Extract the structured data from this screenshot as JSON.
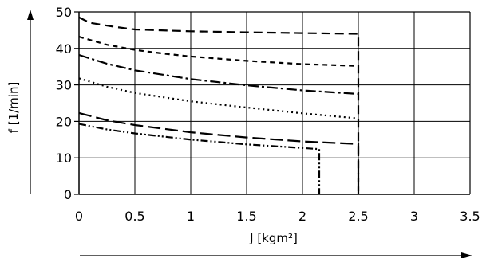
{
  "chart_data": {
    "type": "line",
    "xlabel": "J [kgm²]",
    "ylabel": "f [1/min]",
    "xlim": [
      0,
      3.5
    ],
    "ylim": [
      0,
      50
    ],
    "x_ticks": [
      0,
      0.5,
      1,
      1.5,
      2,
      2.5,
      3,
      3.5
    ],
    "x_tick_labels": [
      "0",
      "0.5",
      "1",
      "1.5",
      "2",
      "2.5",
      "3",
      "3.5"
    ],
    "y_ticks": [
      0,
      10,
      20,
      30,
      40,
      50
    ],
    "y_tick_labels": [
      "0",
      "10",
      "20",
      "30",
      "40",
      "50"
    ],
    "grid": true,
    "series": [
      {
        "dash": "long-dash",
        "points": [
          [
            0,
            48.5
          ],
          [
            0.1,
            47
          ],
          [
            0.3,
            46
          ],
          [
            0.5,
            45.2
          ],
          [
            1,
            44.7
          ],
          [
            1.5,
            44.4
          ],
          [
            2,
            44.2
          ],
          [
            2.5,
            44
          ],
          [
            2.5,
            0
          ]
        ]
      },
      {
        "dash": "short-dash",
        "points": [
          [
            0,
            43.2
          ],
          [
            0.25,
            41
          ],
          [
            0.5,
            39.6
          ],
          [
            0.75,
            38.6
          ],
          [
            1,
            37.8
          ],
          [
            1.5,
            36.6
          ],
          [
            2,
            35.7
          ],
          [
            2.5,
            35.2
          ]
        ]
      },
      {
        "dash": "dash-dot",
        "points": [
          [
            0,
            38.2
          ],
          [
            0.25,
            35.8
          ],
          [
            0.5,
            34
          ],
          [
            1,
            31.6
          ],
          [
            1.5,
            29.9
          ],
          [
            2,
            28.5
          ],
          [
            2.5,
            27.5
          ]
        ]
      },
      {
        "dash": "dotted",
        "points": [
          [
            0,
            31.8
          ],
          [
            0.25,
            29.5
          ],
          [
            0.5,
            27.8
          ],
          [
            1,
            25.5
          ],
          [
            1.5,
            23.8
          ],
          [
            2,
            22.2
          ],
          [
            2.5,
            20.8
          ]
        ]
      },
      {
        "dash": "long-dash-2",
        "points": [
          [
            0,
            22.3
          ],
          [
            0.25,
            20.3
          ],
          [
            0.5,
            19
          ],
          [
            1,
            17
          ],
          [
            1.5,
            15.6
          ],
          [
            2,
            14.5
          ],
          [
            2.5,
            13.8
          ],
          [
            2.5,
            0
          ]
        ]
      },
      {
        "dash": "dash-dot-dot",
        "points": [
          [
            0,
            19.3
          ],
          [
            0.25,
            17.8
          ],
          [
            0.5,
            16.7
          ],
          [
            1,
            15
          ],
          [
            1.5,
            13.7
          ],
          [
            2,
            12.7
          ],
          [
            2.15,
            12.4
          ],
          [
            2.15,
            0
          ]
        ]
      }
    ]
  }
}
